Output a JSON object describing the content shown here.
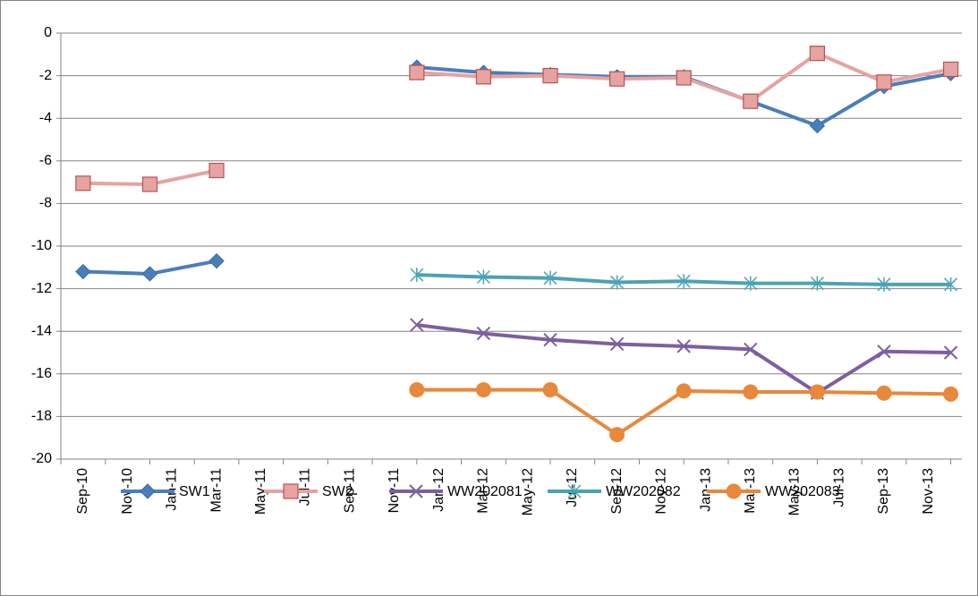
{
  "chart_data": {
    "type": "line",
    "x": [
      "Sep-10",
      "Dec-10",
      "Mar-11",
      "Jun-11",
      "Sep-11",
      "Dec-11",
      "Mar-12",
      "Jun-12",
      "Sep-12",
      "Dec-12",
      "Mar-13",
      "Jun-13",
      "Sep-13",
      "Dec-13"
    ],
    "series": [
      {
        "name": "SW1",
        "color": "#4a7ebb",
        "marker": "diamond",
        "values": [
          -11.2,
          -11.3,
          -10.7,
          null,
          null,
          -1.6,
          -1.85,
          -1.95,
          -2.05,
          -2.05,
          -3.2,
          -4.35,
          -2.5,
          -1.9
        ]
      },
      {
        "name": "SW2",
        "color": "#e6a3a1",
        "marker": "square",
        "values": [
          -7.05,
          -7.1,
          -6.45,
          null,
          null,
          -1.85,
          -2.05,
          -2.0,
          -2.15,
          -2.1,
          -3.2,
          -0.95,
          -2.3,
          -1.7
        ]
      },
      {
        "name": "WW202081",
        "color": "#7d5fa0",
        "marker": "x",
        "values": [
          null,
          null,
          null,
          null,
          null,
          -13.7,
          -14.1,
          -14.4,
          -14.6,
          -14.7,
          -14.85,
          -16.9,
          -14.95,
          -15.0
        ]
      },
      {
        "name": "WW202082",
        "color": "#4aa3b5",
        "marker": "star",
        "values": [
          null,
          null,
          null,
          null,
          null,
          -11.35,
          -11.45,
          -11.5,
          -11.7,
          -11.65,
          -11.75,
          -11.75,
          -11.8,
          -11.8
        ]
      },
      {
        "name": "WW202083",
        "color": "#e8883a",
        "marker": "circle",
        "values": [
          null,
          null,
          null,
          null,
          null,
          -16.75,
          -16.75,
          -16.75,
          -18.85,
          -16.8,
          -16.85,
          -16.85,
          -16.9,
          -16.95
        ]
      }
    ],
    "xticks": [
      "Sep-10",
      "Nov-10",
      "Jan-11",
      "Mar-11",
      "May-11",
      "Jul-11",
      "Sep-11",
      "Nov-11",
      "Jan-12",
      "Mar-12",
      "May-12",
      "Jul-12",
      "Sep-12",
      "Nov-12",
      "Jan-13",
      "Mar-13",
      "May-13",
      "Jul-13",
      "Sep-13",
      "Nov-13"
    ],
    "ylim": [
      -20,
      0
    ],
    "yticks": [
      0,
      -2,
      -4,
      -6,
      -8,
      -10,
      -12,
      -14,
      -16,
      -18,
      -20
    ],
    "grid": true,
    "legend": "bottom"
  }
}
